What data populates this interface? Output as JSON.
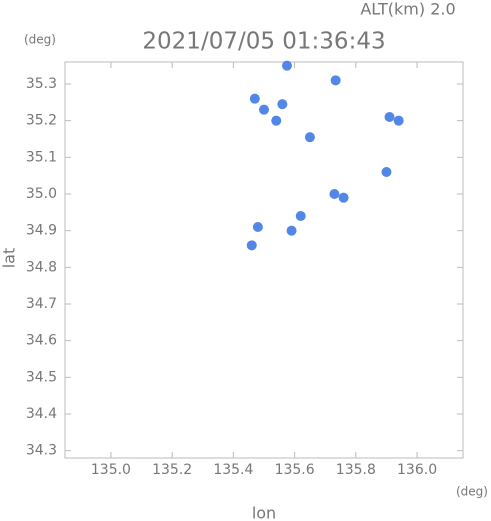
{
  "chart_data": {
    "type": "scatter",
    "title": "2021/07/05 01:36:43",
    "subtitle": "ALT(km) 2.0",
    "x_label": "lon",
    "y_label": "lat",
    "x_unit": "(deg)",
    "y_unit": "(deg)",
    "x": [
      135.575,
      135.734,
      135.47,
      135.5,
      135.56,
      135.54,
      135.91,
      135.94,
      135.65,
      135.9,
      135.76,
      135.73,
      135.62,
      135.48,
      135.59,
      135.46
    ],
    "values": [
      35.35,
      35.31,
      35.26,
      35.23,
      35.245,
      35.2,
      35.21,
      35.2,
      35.155,
      35.06,
      34.99,
      35.0,
      34.94,
      34.91,
      34.9,
      34.86
    ],
    "color": "#3f7ae6",
    "xlim": [
      134.85,
      136.15
    ],
    "ylim": [
      34.28,
      35.36
    ],
    "xticks": [
      {
        "value": 135,
        "label": "135.0"
      },
      135.2,
      135.4,
      135.6,
      135.8,
      {
        "value": 136,
        "label": "136.0"
      }
    ],
    "yticks": [
      34.3,
      34.4,
      34.5,
      34.6,
      34.7,
      34.8,
      34.9,
      {
        "value": 35,
        "label": "35.0"
      },
      35.1,
      35.2,
      35.3
    ]
  }
}
